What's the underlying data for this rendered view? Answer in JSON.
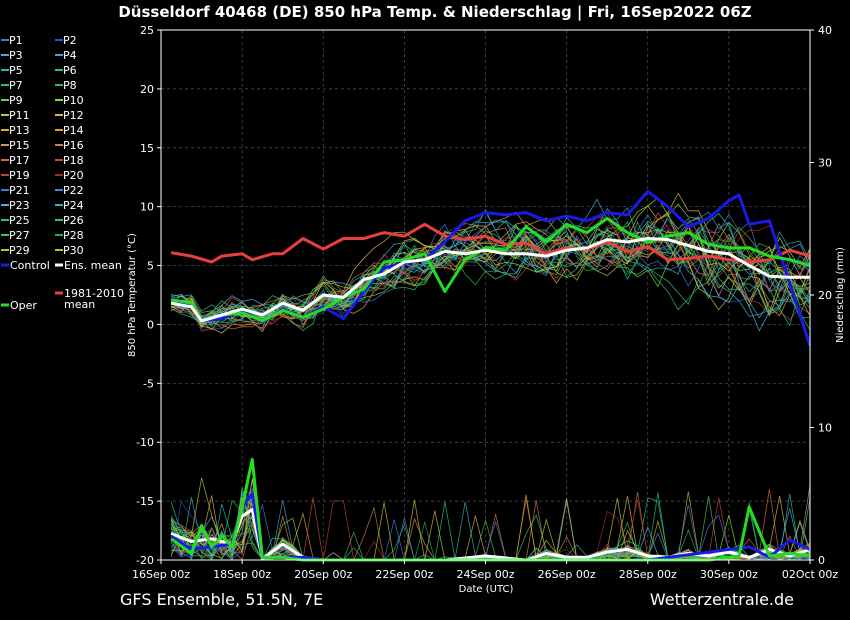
{
  "title": "Düsseldorf 40468 (DE)  850 hPa Temp. & Niederschlag | Fri, 16Sep2022 06Z",
  "footer_left": "GFS Ensemble, 51.5N, 7E",
  "footer_right": "Wetterzentrale.de",
  "chart_data": {
    "type": "line",
    "xlabel": "Date (UTC)",
    "ylabel_left": "850 hPa Temperatur (°C)",
    "ylabel_right": "Niederschlag (mm)",
    "ylim_left": [
      -20,
      25
    ],
    "ylim_right": [
      0,
      40
    ],
    "yticks_left": [
      25,
      20,
      15,
      10,
      5,
      0,
      -5,
      -10,
      -15,
      -20
    ],
    "yticks_right": [
      40,
      30,
      20,
      10,
      0
    ],
    "xticks": [
      "16Sep 00z",
      "18Sep 00z",
      "20Sep 00z",
      "22Sep 00z",
      "24Sep 00z",
      "26Sep 00z",
      "28Sep 00z",
      "30Sep 00z",
      "02Oct 00z"
    ],
    "x_start_day": 0.25,
    "x_step_days": 0.25,
    "grid": true,
    "legend_members": [
      {
        "name": "P1",
        "color": "#3b7bd9"
      },
      {
        "name": "P2",
        "color": "#2255c8"
      },
      {
        "name": "P3",
        "color": "#4aa8e0"
      },
      {
        "name": "P4",
        "color": "#3fa5c8"
      },
      {
        "name": "P5",
        "color": "#2cb5b0"
      },
      {
        "name": "P6",
        "color": "#2fbf8a"
      },
      {
        "name": "P7",
        "color": "#25c07a"
      },
      {
        "name": "P8",
        "color": "#3ab55a"
      },
      {
        "name": "P9",
        "color": "#6cd23a"
      },
      {
        "name": "P10",
        "color": "#7cdc2e"
      },
      {
        "name": "P11",
        "color": "#b8cc3a"
      },
      {
        "name": "P12",
        "color": "#d6b84a"
      },
      {
        "name": "P13",
        "color": "#d4b020"
      },
      {
        "name": "P14",
        "color": "#e0a030"
      },
      {
        "name": "P15",
        "color": "#d89060"
      },
      {
        "name": "P16",
        "color": "#c88050"
      },
      {
        "name": "P17",
        "color": "#d07040"
      },
      {
        "name": "P18",
        "color": "#c84a3a"
      },
      {
        "name": "P19",
        "color": "#c83a3a"
      },
      {
        "name": "P20",
        "color": "#a82828"
      },
      {
        "name": "P21",
        "color": "#3b7bd9"
      },
      {
        "name": "P22",
        "color": "#3a8ad8"
      },
      {
        "name": "P23",
        "color": "#4ab0e0"
      },
      {
        "name": "P24",
        "color": "#30b0c0"
      },
      {
        "name": "P25",
        "color": "#28c0a0"
      },
      {
        "name": "P26",
        "color": "#25c08a"
      },
      {
        "name": "P27",
        "color": "#40c060"
      },
      {
        "name": "P28",
        "color": "#20b050"
      },
      {
        "name": "P29",
        "color": "#9cd43a"
      },
      {
        "name": "P30",
        "color": "#c8c030"
      }
    ],
    "legend_special": [
      {
        "name": "Control",
        "color": "#1a1ae6"
      },
      {
        "name": "Ens. mean",
        "color": "#ffffff"
      },
      {
        "name": "Oper",
        "color": "#22dd22"
      },
      {
        "name": "1981-2010 mean",
        "color": "#e84040"
      }
    ],
    "series_temp": [
      {
        "name": "1981-2010 mean",
        "days": [
          0.25,
          0.75,
          1.25,
          1.5,
          2.0,
          2.25,
          2.75,
          3.0,
          3.5,
          4.0,
          4.5,
          5.0,
          5.5,
          6.0,
          6.5,
          7.0,
          7.5,
          8.0,
          8.5,
          9.0,
          9.5,
          10.0,
          10.5,
          11.0,
          11.5,
          12.0,
          12.5,
          13.0,
          13.5,
          14.0,
          14.5,
          15.0,
          15.5,
          16.0
        ],
        "values": [
          6.1,
          5.8,
          5.3,
          5.8,
          6.0,
          5.5,
          6.0,
          6.0,
          7.3,
          6.4,
          7.3,
          7.3,
          7.8,
          7.5,
          8.5,
          7.5,
          7.2,
          7.5,
          6.8,
          6.9,
          6.0,
          6.5,
          6.4,
          7.0,
          6.2,
          6.6,
          5.5,
          5.6,
          5.8,
          5.5,
          5.3,
          5.5,
          6.3,
          5.8
        ]
      },
      {
        "name": "Control",
        "days": [
          0.25,
          0.75,
          1.0,
          1.5,
          2.0,
          2.5,
          3.0,
          3.5,
          4.0,
          4.5,
          5.0,
          5.5,
          6.0,
          6.5,
          7.0,
          7.5,
          8.0,
          8.5,
          9.0,
          9.5,
          10.0,
          10.5,
          11.0,
          11.5,
          12.0,
          12.5,
          13.0,
          13.5,
          14.0,
          14.25,
          14.5,
          15.0,
          15.5,
          16.0
        ],
        "values": [
          2.2,
          1.5,
          0.3,
          0.5,
          1.2,
          0.2,
          1.3,
          0.6,
          1.5,
          0.5,
          2.8,
          4.8,
          5.2,
          5.5,
          7.0,
          8.8,
          9.5,
          9.3,
          9.5,
          8.8,
          9.2,
          8.8,
          9.5,
          9.3,
          11.3,
          10.0,
          8.3,
          9.0,
          10.5,
          11.0,
          8.5,
          8.8,
          3.5,
          -1.8
        ]
      },
      {
        "name": "Oper",
        "days": [
          0.25,
          0.75,
          1.0,
          1.5,
          2.0,
          2.5,
          3.0,
          3.5,
          4.0,
          4.5,
          5.0,
          5.5,
          6.0,
          6.5,
          7.0,
          7.5,
          8.0,
          8.5,
          9.0,
          9.5,
          10.0,
          10.5,
          11.0,
          11.5,
          12.0,
          12.5,
          13.0,
          13.5,
          14.0,
          14.5,
          15.0,
          15.5,
          16.0
        ],
        "values": [
          2.1,
          1.8,
          0.3,
          0.8,
          1.0,
          0.3,
          1.2,
          0.6,
          1.3,
          2.3,
          3.0,
          5.3,
          5.5,
          6.0,
          2.8,
          5.5,
          6.5,
          6.3,
          8.3,
          7.0,
          8.5,
          7.8,
          9.0,
          7.8,
          7.0,
          7.5,
          7.8,
          6.8,
          6.5,
          6.5,
          5.8,
          5.5,
          5.0
        ]
      },
      {
        "name": "Ens. mean",
        "days": [
          0.25,
          0.75,
          1.0,
          1.5,
          2.0,
          2.5,
          3.0,
          3.5,
          4.0,
          4.5,
          5.0,
          5.5,
          6.0,
          6.5,
          7.0,
          7.5,
          8.0,
          8.5,
          9.0,
          9.5,
          10.0,
          10.5,
          11.0,
          11.5,
          12.0,
          12.5,
          13.0,
          13.5,
          14.0,
          14.5,
          15.0,
          15.5,
          16.0
        ],
        "values": [
          1.8,
          1.5,
          0.3,
          0.8,
          1.3,
          0.8,
          1.8,
          1.2,
          2.5,
          2.3,
          3.8,
          4.3,
          5.3,
          5.5,
          6.2,
          6.0,
          6.3,
          6.0,
          6.0,
          5.8,
          6.3,
          6.5,
          7.2,
          7.0,
          7.3,
          7.2,
          6.7,
          6.2,
          6.0,
          5.0,
          4.1,
          4.0,
          4.0
        ]
      }
    ],
    "series_precip": [
      {
        "name": "Ens. mean",
        "days": [
          0.25,
          0.75,
          1.25,
          1.75,
          2.0,
          2.25,
          2.5,
          3.0,
          3.5,
          4.0,
          5.0,
          6.0,
          7.0,
          8.0,
          9.0,
          9.5,
          10.0,
          10.5,
          11.0,
          11.5,
          12.0,
          12.5,
          13.0,
          13.5,
          14.0,
          14.5,
          15.0,
          15.5,
          16.0
        ],
        "values": [
          2.0,
          1.4,
          1.6,
          1.2,
          3.3,
          3.8,
          0.1,
          1.2,
          0.2,
          0.0,
          0.0,
          0.0,
          0.0,
          0.3,
          0.0,
          0.5,
          0.2,
          0.2,
          0.6,
          0.8,
          0.3,
          0.2,
          0.5,
          0.3,
          0.6,
          0.2,
          0.8,
          0.3,
          0.8
        ]
      },
      {
        "name": "Control",
        "days": [
          0.25,
          0.75,
          1.25,
          1.75,
          2.0,
          2.25,
          2.5,
          3.0,
          3.5,
          4.0,
          5.0,
          8.0,
          12.0,
          14.5,
          15.0,
          15.5,
          16.0
        ],
        "values": [
          1.8,
          0.8,
          1.0,
          1.2,
          4.0,
          5.0,
          0.2,
          0.2,
          0.2,
          0.0,
          0.0,
          0.0,
          0.0,
          1.0,
          0.2,
          1.5,
          0.8
        ]
      },
      {
        "name": "Oper",
        "days": [
          0.25,
          0.75,
          1.0,
          1.25,
          1.5,
          1.75,
          2.0,
          2.25,
          2.5,
          3.0,
          3.5,
          4.0,
          5.0,
          8.0,
          12.0,
          13.5,
          14.25,
          14.5,
          15.0,
          15.5,
          16.0
        ],
        "values": [
          1.6,
          0.5,
          2.6,
          1.0,
          1.8,
          1.0,
          4.0,
          7.6,
          0.2,
          0.2,
          0.0,
          0.0,
          0.0,
          0.0,
          0.0,
          0.0,
          0.3,
          4.0,
          0.3,
          0.5,
          0.3
        ]
      }
    ]
  }
}
